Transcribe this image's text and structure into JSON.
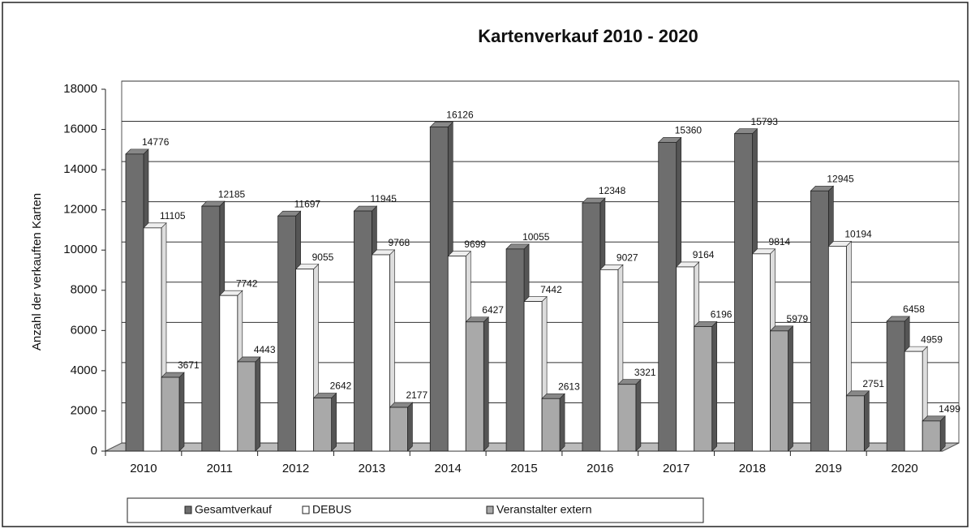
{
  "chart_data": {
    "type": "bar",
    "title": "Kartenverkauf 2010 - 2020",
    "y_label": "Anzahl der verkauften Karten",
    "categories": [
      "2010",
      "2011",
      "2012",
      "2013",
      "2014",
      "2015",
      "2016",
      "2017",
      "2018",
      "2019",
      "2020"
    ],
    "series": [
      {
        "name": "Gesamtverkauf",
        "color": "#6e6e6e",
        "values": [
          14776,
          12185,
          11697,
          11945,
          16126,
          10055,
          12348,
          15360,
          15793,
          12945,
          6458
        ]
      },
      {
        "name": "DEBUS",
        "color": "#ffffff",
        "values": [
          11105,
          7742,
          9055,
          9768,
          9699,
          7442,
          9027,
          9164,
          9814,
          10194,
          4959
        ]
      },
      {
        "name": "Veranstalter extern",
        "color": "#a9a9a9",
        "values": [
          3671,
          4443,
          2642,
          2177,
          6427,
          2613,
          3321,
          6196,
          5979,
          2751,
          1499
        ]
      }
    ],
    "ylim": [
      0,
      18000
    ],
    "yticks": [
      0,
      2000,
      4000,
      6000,
      8000,
      10000,
      12000,
      14000,
      16000,
      18000
    ],
    "grid": true,
    "legend": "bottom"
  }
}
